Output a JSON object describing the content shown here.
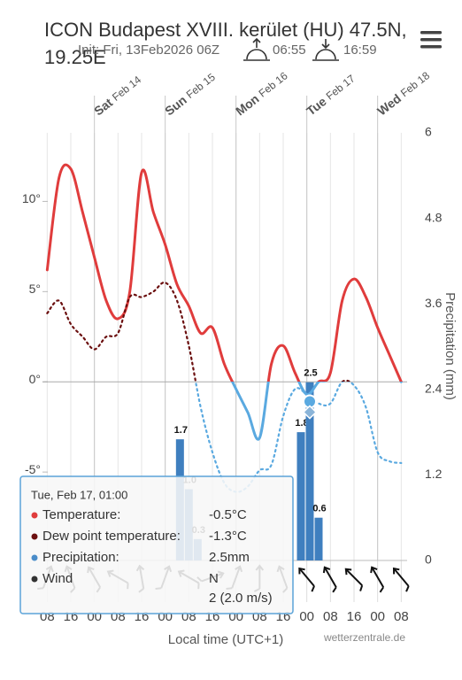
{
  "header": {
    "title_line1": "ICON Budapest XVIII. kerület (HU) 47.5N,",
    "title_line2": "19.25E",
    "init": "Init: Fri, 13Feb2026 06Z",
    "sunrise": "06:55",
    "sunset": "16:59"
  },
  "chart_data": {
    "type": "line",
    "x": [
      "Feb 13 08:00",
      "Feb 13 12:00",
      "Feb 13 16:00",
      "Feb 13 20:00",
      "Feb 14 00:00",
      "Feb 14 04:00",
      "Feb 14 08:00",
      "Feb 14 12:00",
      "Feb 14 16:00",
      "Feb 14 20:00",
      "Feb 15 00:00",
      "Feb 15 04:00",
      "Feb 15 08:00",
      "Feb 15 12:00",
      "Feb 15 16:00",
      "Feb 15 20:00",
      "Feb 16 00:00",
      "Feb 16 04:00",
      "Feb 16 08:00",
      "Feb 16 12:00",
      "Feb 16 16:00",
      "Feb 16 20:00",
      "Feb 17 00:00",
      "Feb 17 04:00",
      "Feb 17 08:00",
      "Feb 17 12:00",
      "Feb 17 16:00",
      "Feb 17 20:00",
      "Feb 18 00:00",
      "Feb 18 04:00",
      "Feb 18 08:00"
    ],
    "series": [
      {
        "name": "Temperature",
        "color": "#e03c3c",
        "color_below_zero": "#5aa9e0",
        "values": [
          6.2,
          11.3,
          11.8,
          9.4,
          6.9,
          4.5,
          3.5,
          5,
          11.6,
          9.4,
          7.6,
          5.4,
          4.2,
          2.7,
          3,
          1,
          -0.4,
          -1.7,
          -3.1,
          1,
          2,
          0.5,
          -0.7,
          0,
          0.5,
          4.5,
          5.7,
          4.7,
          3,
          1.5,
          0
        ]
      },
      {
        "name": "Dew point temperature",
        "color": "#6b0f0f",
        "color_below_zero": "#5aa9e0",
        "values": [
          3.8,
          4.5,
          3.2,
          2.5,
          1.8,
          2.5,
          2.7,
          4.7,
          4.7,
          5,
          5.5,
          4.5,
          2,
          -1.4,
          -3.9,
          -5.6,
          -6.1,
          -5.8,
          -4.9,
          -4.6,
          -1.9,
          -0.4,
          -0.7,
          -1.2,
          -1.2,
          0,
          -0.2,
          -1.4,
          -3.9,
          -4.4,
          -4.5
        ]
      }
    ],
    "precipitation": {
      "name": "Precipitation",
      "color": "#3f7fbf",
      "x": [
        "Feb 15 05:00",
        "Feb 15 08:00",
        "Feb 15 11:00",
        "Feb 16 22:00",
        "Feb 17 01:00",
        "Feb 17 04:00"
      ],
      "values": [
        1.7,
        1.0,
        0.3,
        1.8,
        2.5,
        0.6
      ],
      "value_labels": [
        "1.7",
        "1.0",
        "0.3",
        "1.8",
        "2.5",
        "0.6"
      ],
      "axis": "y2"
    },
    "wind_direction": [
      200,
      160,
      150,
      120,
      170,
      200,
      120,
      250,
      200,
      180,
      160,
      140,
      150,
      135,
      150,
      140
    ],
    "xlim": [
      "Feb 13 07:00",
      "Feb 18 10:00"
    ],
    "xticks": [
      {
        "value": "Feb 13 08:00",
        "label": "08"
      },
      {
        "value": "Feb 13 16:00",
        "label": "16"
      },
      {
        "value": "Feb 14 00:00",
        "label": "00"
      },
      {
        "value": "Feb 14 08:00",
        "label": "08"
      },
      {
        "value": "Feb 14 16:00",
        "label": "16"
      },
      {
        "value": "Feb 15 00:00",
        "label": "00"
      },
      {
        "value": "Feb 15 08:00",
        "label": "08"
      },
      {
        "value": "Feb 15 16:00",
        "label": "16"
      },
      {
        "value": "Feb 16 00:00",
        "label": "00"
      },
      {
        "value": "Feb 16 08:00",
        "label": "08"
      },
      {
        "value": "Feb 16 16:00",
        "label": "16"
      },
      {
        "value": "Feb 17 00:00",
        "label": "00"
      },
      {
        "value": "Feb 17 08:00",
        "label": "08"
      },
      {
        "value": "Feb 17 16:00",
        "label": "16"
      },
      {
        "value": "Feb 18 00:00",
        "label": "00"
      },
      {
        "value": "Feb 18 08:00",
        "label": "08"
      }
    ],
    "day_labels": [
      {
        "value": "Feb 14 00:00",
        "weekday": "Sat",
        "date": "Feb 14"
      },
      {
        "value": "Feb 15 00:00",
        "weekday": "Sun",
        "date": "Feb 15"
      },
      {
        "value": "Feb 16 00:00",
        "weekday": "Mon",
        "date": "Feb 16"
      },
      {
        "value": "Feb 17 00:00",
        "weekday": "Tue",
        "date": "Feb 17"
      },
      {
        "value": "Feb 18 00:00",
        "weekday": "Wed",
        "date": "Feb 18"
      }
    ],
    "ylim": [
      -9.9,
      13.8
    ],
    "yticks": [
      {
        "value": -5,
        "label": "-5°"
      },
      {
        "value": 0,
        "label": "0°"
      },
      {
        "value": 5,
        "label": "5°"
      },
      {
        "value": 10,
        "label": "10°"
      }
    ],
    "y2lim": [
      0,
      6
    ],
    "y2ticks": [
      0,
      1.2,
      2.4,
      3.6,
      4.8,
      6
    ],
    "y2_label": "Precipitation (mm)",
    "x_label": "Local time (UTC+1)",
    "credit": "wetterzentrale.de"
  },
  "tooltip": {
    "title": "Tue, Feb 17, 01:00",
    "rows": [
      {
        "label": "Temperature:",
        "value": "-0.5°C",
        "color": "#e03c3c"
      },
      {
        "label": "Dew point temperature:",
        "value": "-1.3°C",
        "color": "#6b0f0f"
      },
      {
        "label": "Precipitation:",
        "value": "2.5mm",
        "color": "#4a8cc9"
      },
      {
        "label": "Wind",
        "value": "N",
        "value2": "2 (2.0 m/s)",
        "color": "#333"
      }
    ]
  }
}
